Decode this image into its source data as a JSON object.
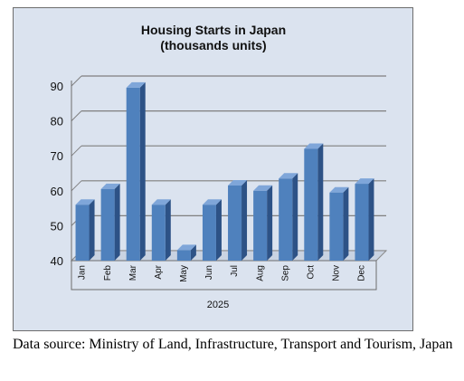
{
  "chart_data": {
    "type": "bar",
    "title": "Housing Starts in Japan",
    "subtitle": "(thousands units)",
    "categories": [
      "Jan",
      "Feb",
      "Mar",
      "Apr",
      "May",
      "Jun",
      "Jul",
      "Aug",
      "Sep",
      "Oct",
      "Nov",
      "Dec"
    ],
    "x_group_label": "2025",
    "values": [
      56,
      60.5,
      89.5,
      56,
      43,
      56,
      61.5,
      60,
      63.5,
      72,
      59.5,
      62
    ],
    "ylim": [
      40,
      90
    ],
    "yticks": [
      40,
      50,
      60,
      70,
      80,
      90
    ],
    "grid": true,
    "legend": "none",
    "bar_color": "#4f81bd",
    "bar_side_color": "#2d5286",
    "bar_top_color": "#7fa6d9"
  },
  "source_note": "Data source: Ministry of Land, Infrastructure, Transport and Tourism, Japan"
}
